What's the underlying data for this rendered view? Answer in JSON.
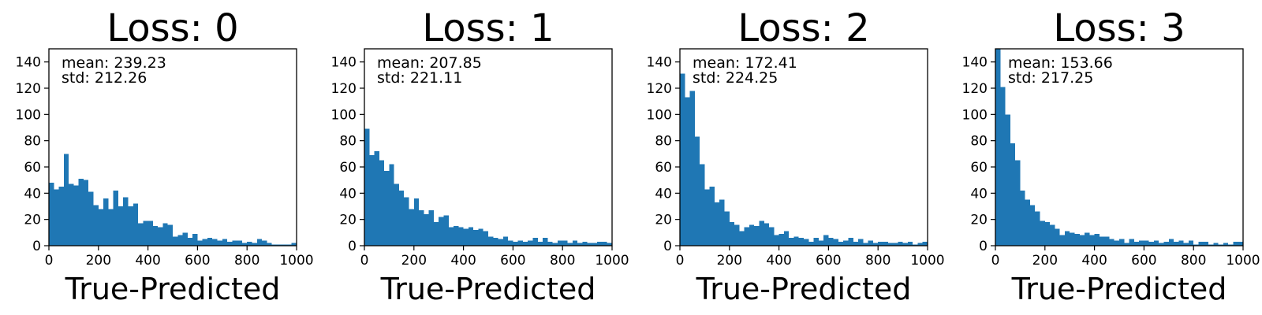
{
  "chart_data": [
    {
      "type": "bar",
      "title": "Loss: 0",
      "xlabel": "True-Predicted",
      "ylabel": "",
      "xlim": [
        0,
        1000
      ],
      "ylim": [
        0,
        150
      ],
      "x_ticks": [
        "0",
        "200",
        "400",
        "600",
        "800",
        "1000"
      ],
      "y_ticks": [
        "0",
        "20",
        "40",
        "60",
        "80",
        "100",
        "120",
        "140"
      ],
      "bin_width": 20,
      "annotation": {
        "mean": "mean: 239.23",
        "std": "std: 212.26"
      },
      "values": [
        48,
        43,
        45,
        70,
        47,
        46,
        51,
        50,
        41,
        31,
        28,
        36,
        28,
        42,
        30,
        37,
        30,
        32,
        17,
        19,
        19,
        15,
        14,
        17,
        16,
        7,
        8,
        10,
        6,
        9,
        4,
        5,
        6,
        5,
        4,
        5,
        3,
        4,
        4,
        2,
        3,
        2,
        5,
        4,
        2,
        1,
        1,
        1,
        1,
        2
      ]
    },
    {
      "type": "bar",
      "title": "Loss: 1",
      "xlabel": "True-Predicted",
      "ylabel": "",
      "xlim": [
        0,
        1000
      ],
      "ylim": [
        0,
        150
      ],
      "x_ticks": [
        "0",
        "200",
        "400",
        "600",
        "800",
        "1000"
      ],
      "y_ticks": [
        "0",
        "20",
        "40",
        "60",
        "80",
        "100",
        "120",
        "140"
      ],
      "bin_width": 20,
      "annotation": {
        "mean": "mean: 207.85",
        "std": "std: 221.11"
      },
      "values": [
        89,
        69,
        72,
        65,
        57,
        62,
        47,
        42,
        37,
        28,
        36,
        27,
        24,
        27,
        18,
        22,
        23,
        14,
        15,
        14,
        13,
        14,
        12,
        13,
        11,
        7,
        6,
        5,
        7,
        4,
        3,
        4,
        3,
        4,
        6,
        3,
        6,
        3,
        2,
        4,
        4,
        2,
        4,
        2,
        3,
        2,
        2,
        3,
        3,
        2
      ]
    },
    {
      "type": "bar",
      "title": "Loss: 2",
      "xlabel": "True-Predicted",
      "ylabel": "",
      "xlim": [
        0,
        1000
      ],
      "ylim": [
        0,
        150
      ],
      "x_ticks": [
        "0",
        "200",
        "400",
        "600",
        "800",
        "1000"
      ],
      "y_ticks": [
        "0",
        "20",
        "40",
        "60",
        "80",
        "100",
        "120",
        "140"
      ],
      "bin_width": 20,
      "annotation": {
        "mean": "mean: 172.41",
        "std": "std: 224.25"
      },
      "values": [
        131,
        113,
        118,
        83,
        62,
        43,
        45,
        33,
        35,
        26,
        18,
        16,
        11,
        14,
        16,
        15,
        19,
        17,
        14,
        8,
        9,
        11,
        6,
        7,
        6,
        5,
        3,
        6,
        4,
        8,
        6,
        5,
        3,
        4,
        6,
        3,
        5,
        2,
        4,
        2,
        3,
        3,
        2,
        2,
        3,
        2,
        3,
        1,
        2,
        3
      ]
    },
    {
      "type": "bar",
      "title": "Loss: 3",
      "xlabel": "True-Predicted",
      "ylabel": "",
      "xlim": [
        0,
        1000
      ],
      "ylim": [
        0,
        150
      ],
      "x_ticks": [
        "0",
        "200",
        "400",
        "600",
        "800",
        "1000"
      ],
      "y_ticks": [
        "0",
        "20",
        "40",
        "60",
        "80",
        "100",
        "120",
        "140"
      ],
      "bin_width": 20,
      "annotation": {
        "mean": "mean: 153.66",
        "std": "std: 217.25"
      },
      "values": [
        150,
        121,
        100,
        78,
        65,
        42,
        35,
        31,
        26,
        19,
        18,
        16,
        13,
        8,
        11,
        10,
        9,
        8,
        10,
        8,
        9,
        7,
        7,
        5,
        4,
        5,
        2,
        5,
        3,
        4,
        4,
        3,
        4,
        2,
        3,
        5,
        3,
        4,
        2,
        4,
        1,
        3,
        3,
        1,
        2,
        1,
        2,
        1,
        3,
        3
      ]
    }
  ],
  "colors": {
    "bar": "#1f77b4",
    "axis": "#000000",
    "background": "#ffffff"
  }
}
